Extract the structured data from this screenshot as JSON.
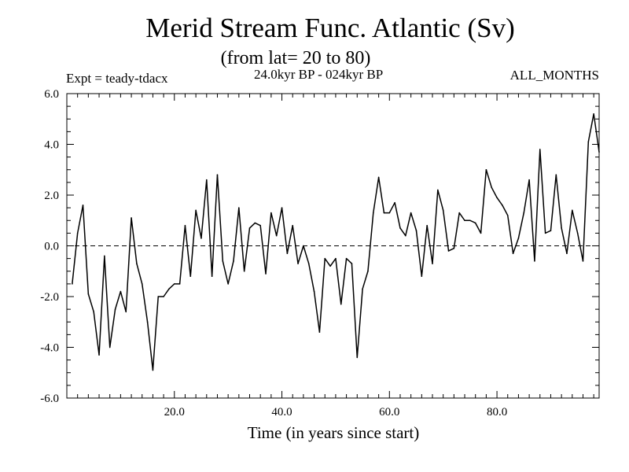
{
  "chart_data": {
    "type": "line",
    "title": "Merid Stream Func. Atlantic (Sv)",
    "subtitle": "(from lat= 20 to 80)",
    "annotations": {
      "experiment": "Expt = teady-tdacx",
      "period": "24.0kyr BP - 024kyr BP",
      "months": "ALL_MONTHS"
    },
    "xlabel": "Time (in years since start)",
    "ylabel": "",
    "xlim": [
      0,
      99
    ],
    "ylim": [
      -6,
      6
    ],
    "x_ticks": [
      20,
      40,
      60,
      80
    ],
    "x_tick_labels": [
      "20.0",
      "40.0",
      "60.0",
      "80.0"
    ],
    "y_ticks": [
      -6,
      -4,
      -2,
      0,
      2,
      4,
      6
    ],
    "y_tick_labels": [
      "-6.0",
      "-4.0",
      "-2.0",
      "0.0",
      "2.0",
      "4.0",
      "6.0"
    ],
    "zero_line": "dashed",
    "grid": false,
    "series": [
      {
        "name": "Merid Stream Func. Atlantic",
        "x": [
          1,
          2,
          3,
          4,
          5,
          6,
          7,
          8,
          9,
          10,
          11,
          12,
          13,
          14,
          15,
          16,
          17,
          18,
          19,
          20,
          21,
          22,
          23,
          24,
          25,
          26,
          27,
          28,
          29,
          30,
          31,
          32,
          33,
          34,
          35,
          36,
          37,
          38,
          39,
          40,
          41,
          42,
          43,
          44,
          45,
          46,
          47,
          48,
          49,
          50,
          51,
          52,
          53,
          54,
          55,
          56,
          57,
          58,
          59,
          60,
          61,
          62,
          63,
          64,
          65,
          66,
          67,
          68,
          69,
          70,
          71,
          72,
          73,
          74,
          75,
          76,
          77,
          78,
          79,
          80,
          81,
          82,
          83,
          84,
          85,
          86,
          87,
          88,
          89,
          90,
          91,
          92,
          93,
          94,
          95,
          96,
          97,
          98,
          99
        ],
        "values": [
          -1.5,
          0.5,
          1.6,
          -1.9,
          -2.6,
          -4.3,
          -0.4,
          -4.0,
          -2.5,
          -1.8,
          -2.6,
          1.1,
          -0.7,
          -1.5,
          -3.0,
          -4.9,
          -2.0,
          -2.0,
          -1.7,
          -1.5,
          -1.5,
          0.8,
          -1.2,
          1.4,
          0.3,
          2.6,
          -1.2,
          2.8,
          -0.6,
          -1.5,
          -0.6,
          1.5,
          -1.0,
          0.7,
          0.9,
          0.8,
          -1.1,
          1.3,
          0.4,
          1.5,
          -0.3,
          0.8,
          -0.7,
          0.0,
          -0.7,
          -1.8,
          -3.4,
          -0.5,
          -0.8,
          -0.5,
          -2.3,
          -0.5,
          -0.7,
          -4.4,
          -1.7,
          -1.0,
          1.3,
          2.7,
          1.3,
          1.3,
          1.7,
          0.7,
          0.4,
          1.3,
          0.6,
          -1.2,
          0.8,
          -0.7,
          2.2,
          1.4,
          -0.2,
          -0.1,
          1.3,
          1.0,
          1.0,
          0.9,
          0.5,
          3.0,
          2.3,
          1.9,
          1.6,
          1.2,
          -0.3,
          0.3,
          1.3,
          2.6,
          -0.6,
          3.8,
          0.5,
          0.6,
          2.8,
          0.7,
          -0.3,
          1.4,
          0.5,
          -0.6,
          4.1,
          5.2,
          3.7
        ],
        "color": "#000000"
      }
    ]
  }
}
